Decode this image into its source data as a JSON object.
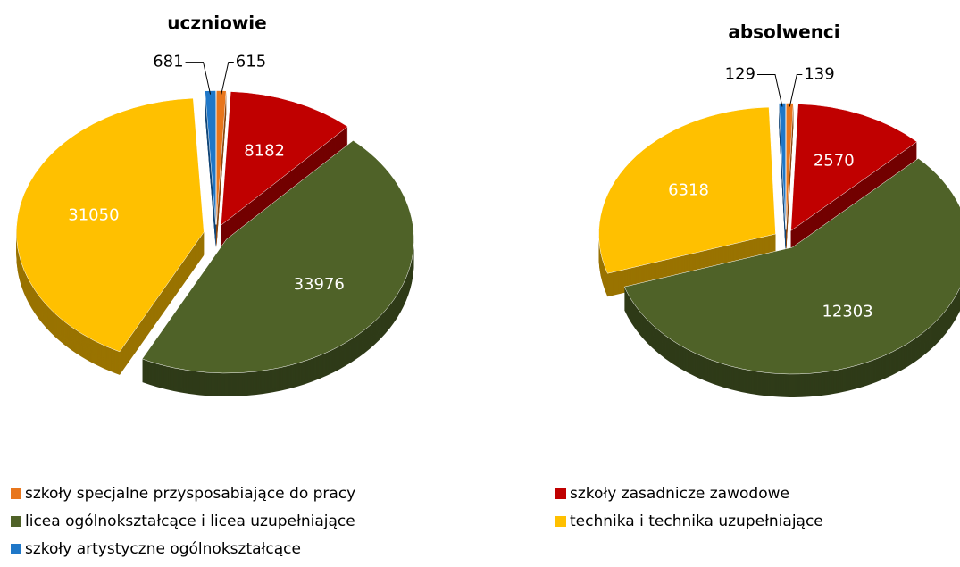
{
  "chart_data": [
    {
      "type": "pie",
      "title": "uczniowie",
      "values": [
        615,
        8182,
        33976,
        31050,
        681
      ]
    },
    {
      "type": "pie",
      "title": "absolwenci",
      "values": [
        139,
        2570,
        12303,
        6318,
        129
      ]
    }
  ],
  "legend": {
    "categories": [
      "szkoły specjalne przysposabiające do pracy",
      "szkoły zasadnicze zawodowe",
      "licea ogólnokształcące i licea uzupełniające",
      "technika i technika uzupełniające",
      "szkoły artystyczne ogólnokształcące"
    ],
    "colors": [
      "#e8761c",
      "#c00000",
      "#4f6228",
      "#ffc000",
      "#1f77c8"
    ]
  }
}
